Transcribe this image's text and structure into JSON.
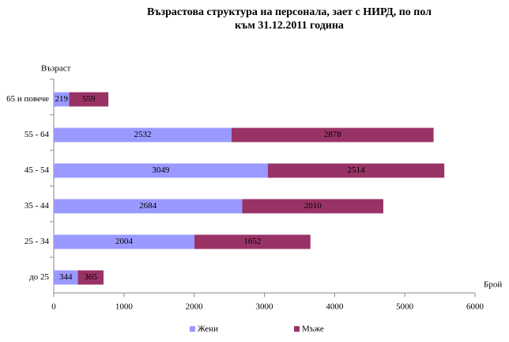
{
  "chart_data": {
    "type": "stacked-bar-horizontal",
    "title": [
      "Възрастова структура на персонала, зает с НИРД, по пол",
      "към 31.12.2011 година"
    ],
    "y_label": "Възраст",
    "x_label": "Брой",
    "categories": [
      "65 и повече",
      "55 - 64",
      "45 - 54",
      "35 - 44",
      "25 - 34",
      "до 25"
    ],
    "series": [
      {
        "name": "Жени",
        "color": "#9999ff",
        "values": [
          219,
          2532,
          3049,
          2684,
          2004,
          344
        ]
      },
      {
        "name": "Мъже",
        "color": "#993366",
        "values": [
          559,
          2878,
          2514,
          2010,
          1652,
          365
        ]
      }
    ],
    "xlim": [
      0,
      6000
    ],
    "xticks": [
      0,
      1000,
      2000,
      3000,
      4000,
      5000,
      6000
    ],
    "legend": "bottom"
  }
}
